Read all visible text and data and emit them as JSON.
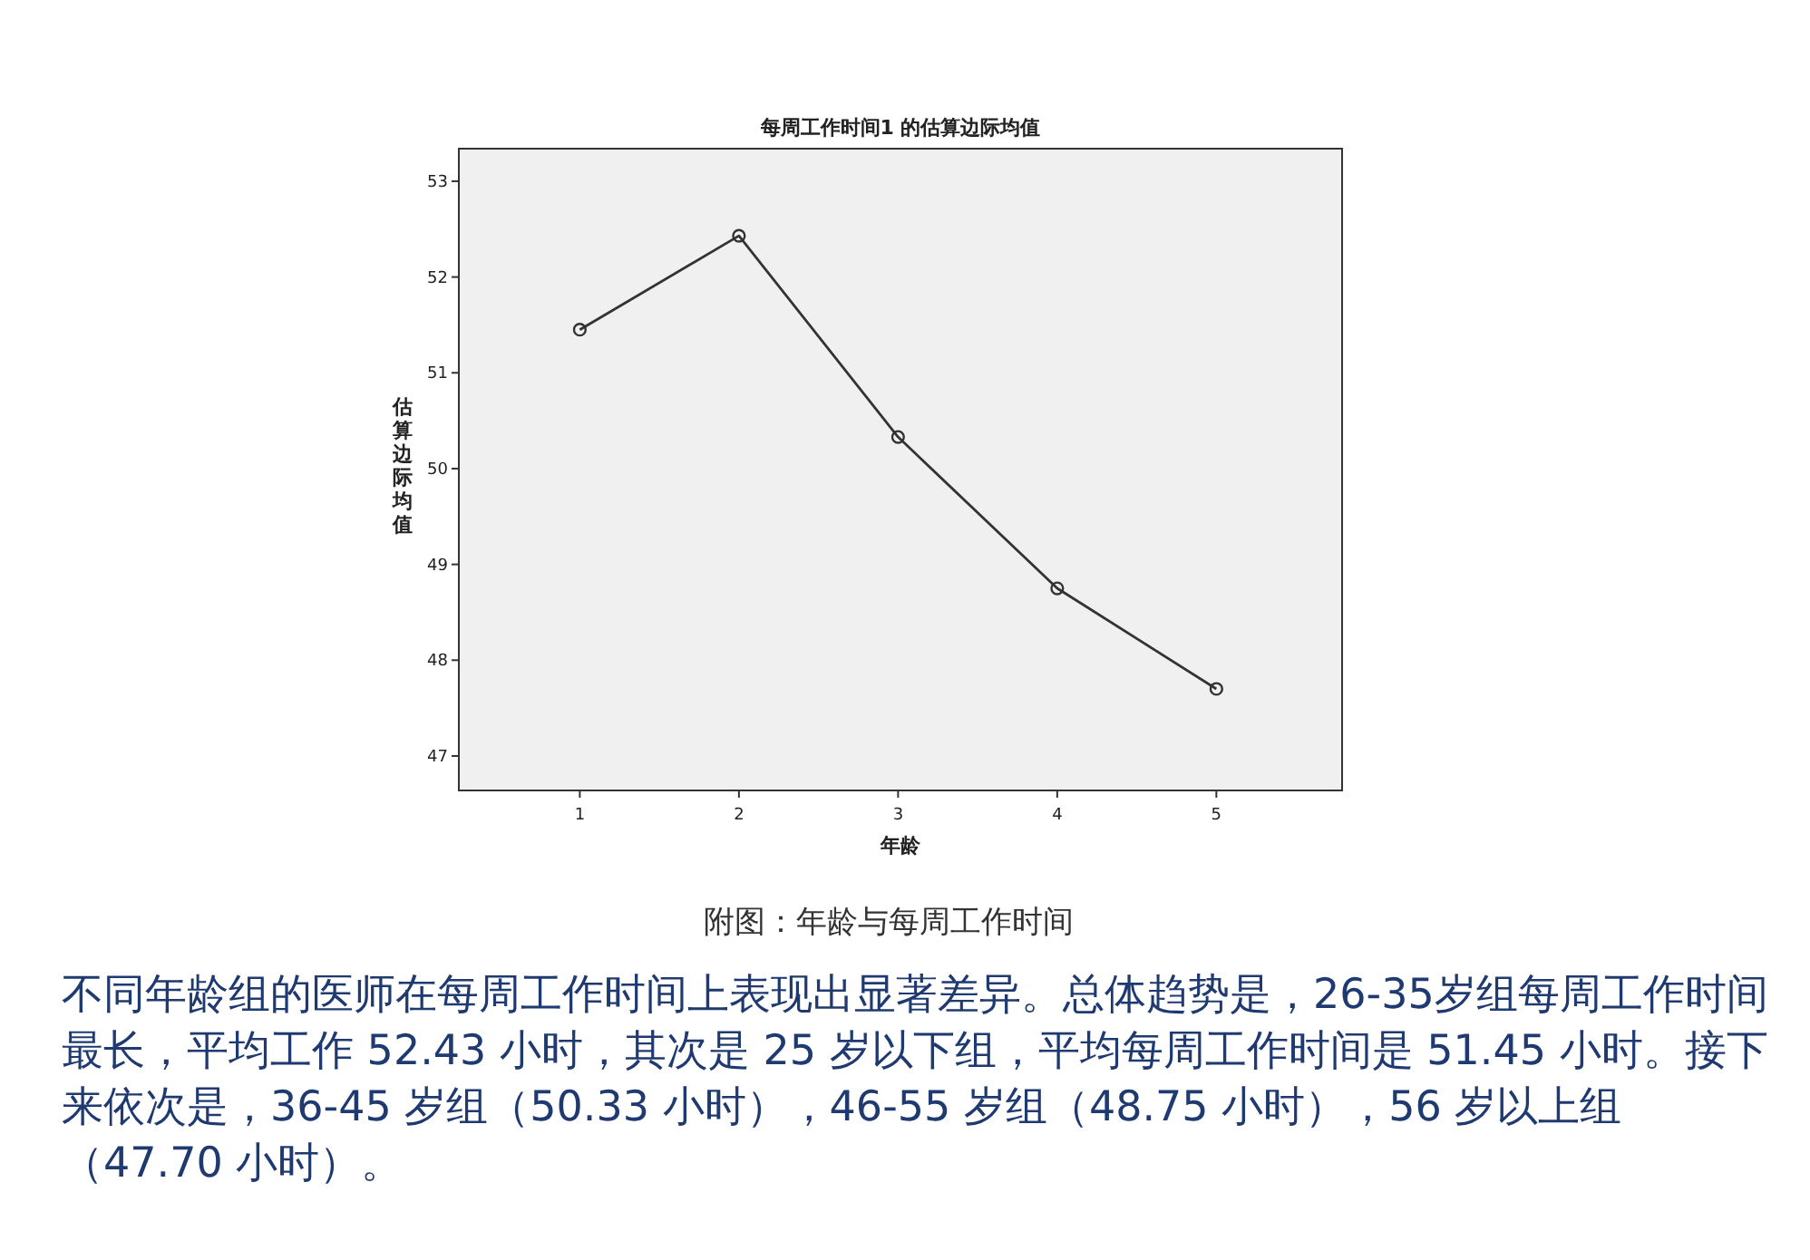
{
  "chart_data": {
    "type": "line",
    "title": "每周工作时间1 的估算边际均值",
    "xlabel": "年龄",
    "ylabel": "估算边际均值",
    "x": [
      1,
      2,
      3,
      4,
      5
    ],
    "series": [
      {
        "color": "#333333",
        "values": [
          51.45,
          52.43,
          50.33,
          48.75,
          47.7
        ]
      }
    ],
    "xlim": [
      0.24,
      5.79
    ],
    "ylim": [
      46.64,
      53.34
    ],
    "xticks": [
      1,
      2,
      3,
      4,
      5
    ],
    "yticks": [
      47,
      48,
      49,
      50,
      51,
      52,
      53
    ],
    "marker": "circle",
    "grid": false,
    "annotations": [
      "附图：年龄与每周工作时间",
      "不同年龄组的医师在每周工作时间上表现出显著差异。总体趋势是，26-35岁组每周工作时间最长，平均工作 52.43 小时，其次是 25 岁以下组，平均每周工作时间是 51.45 小时。接下来依次是，36-45 岁组（50.33 小时），46-55 岁组（48.75 小时），56 岁以上组（47.70 小时）。"
    ]
  }
}
